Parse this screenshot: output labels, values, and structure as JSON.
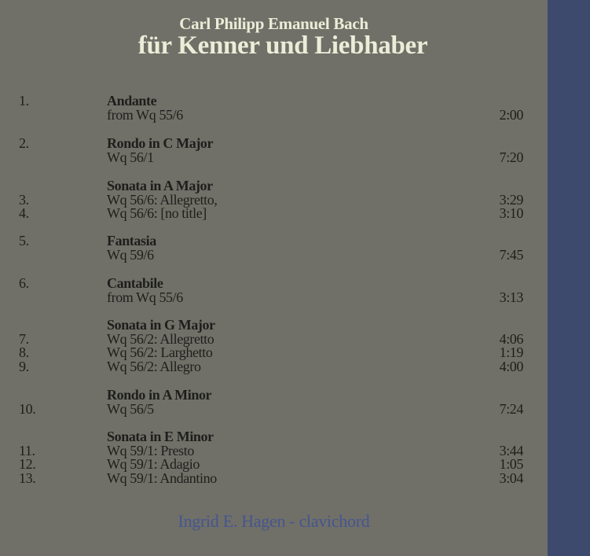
{
  "header": {
    "composer": "Carl Philipp Emanuel Bach",
    "title": "für Kenner und Liebhaber"
  },
  "colors": {
    "background": "#707068",
    "band": "#3d4a6e",
    "title": "#ecedd8",
    "performer": "#46558f"
  },
  "groups": [
    {
      "num": "1.",
      "heading": "Andante",
      "lines": [
        {
          "num": "",
          "text": "from Wq 55/6",
          "time": "2:00"
        }
      ]
    },
    {
      "num": "2.",
      "heading": "Rondo in C Major",
      "lines": [
        {
          "num": "",
          "text": "Wq 56/1",
          "time": "7:20"
        }
      ]
    },
    {
      "num": "",
      "heading": "Sonata in A Major",
      "lines": [
        {
          "num": "3.",
          "text": "Wq 56/6: Allegretto,",
          "time": "3:29"
        },
        {
          "num": "4.",
          "text": "Wq 56/6: [no title]",
          "time": "3:10"
        }
      ]
    },
    {
      "num": "5.",
      "heading": "Fantasia",
      "lines": [
        {
          "num": "",
          "text": "Wq 59/6",
          "time": "7:45"
        }
      ]
    },
    {
      "num": "6.",
      "heading": "Cantabile",
      "lines": [
        {
          "num": "",
          "text": "from Wq 55/6",
          "time": "3:13"
        }
      ]
    },
    {
      "num": "",
      "heading": "Sonata in G Major",
      "lines": [
        {
          "num": "7.",
          "text": "Wq 56/2: Allegretto",
          "time": "4:06"
        },
        {
          "num": "8.",
          "text": "Wq 56/2: Larghetto",
          "time": "1:19"
        },
        {
          "num": "9.",
          "text": "Wq 56/2: Allegro",
          "time": "4:00"
        }
      ]
    },
    {
      "num": "",
      "heading": "Rondo in A Minor",
      "lines": [
        {
          "num": "10.",
          "text": "Wq 56/5",
          "time": "7:24"
        }
      ]
    },
    {
      "num": "",
      "heading": "Sonata in E Minor",
      "lines": [
        {
          "num": "11.",
          "text": "Wq 59/1: Presto",
          "time": "3:44"
        },
        {
          "num": "12.",
          "text": "Wq 59/1: Adagio",
          "time": "1:05"
        },
        {
          "num": "13.",
          "text": "Wq 59/1: Andantino",
          "time": "3:04"
        }
      ]
    }
  ],
  "footer": {
    "performer": "Ingrid E. Hagen - clavichord"
  }
}
